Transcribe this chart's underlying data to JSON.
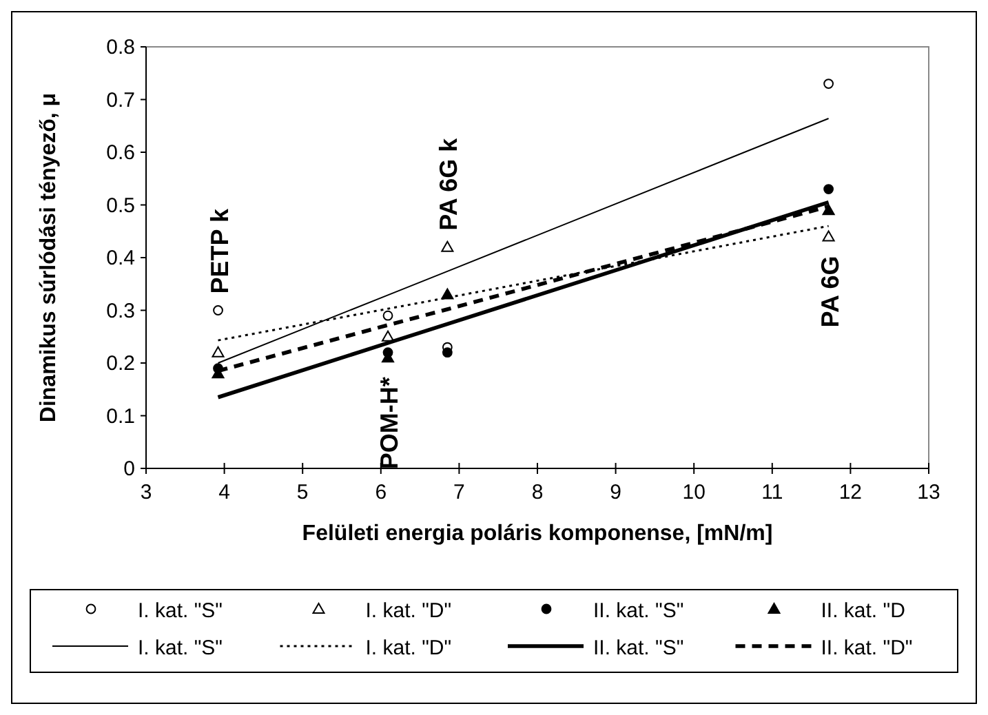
{
  "chart_data": {
    "type": "scatter",
    "xlabel": "Felületi energia poláris komponense, [mN/m]",
    "ylabel": "Dinamikus súrlódási tényező, μ",
    "xlim": [
      3,
      13
    ],
    "ylim": [
      0,
      0.8
    ],
    "xticks": [
      3,
      4,
      5,
      6,
      7,
      8,
      9,
      10,
      11,
      12,
      13
    ],
    "yticks": [
      0,
      0.1,
      0.2,
      0.3,
      0.4,
      0.5,
      0.6,
      0.7,
      0.8
    ],
    "legend": "bottom",
    "grid": false,
    "x": [
      3.92,
      6.09,
      6.85,
      11.72
    ],
    "series": [
      {
        "name": "I. kat. \"S\"",
        "marker": "circle",
        "color": "#ffffff",
        "values": [
          0.3,
          0.29,
          0.23,
          0.73
        ]
      },
      {
        "name": "I. kat. \"D\"",
        "marker": "triangle",
        "color": "#ffffff",
        "values": [
          0.22,
          0.25,
          0.42,
          0.44
        ]
      },
      {
        "name": "II. kat. \"S\"",
        "marker": "circle",
        "color": "#000000",
        "values": [
          0.19,
          0.22,
          0.22,
          0.53
        ]
      },
      {
        "name": "II. kat. \"D",
        "marker": "triangle",
        "color": "#000000",
        "values": [
          0.18,
          0.21,
          0.33,
          0.49
        ]
      },
      {
        "name": "I. kat. \"S\"",
        "type": "line",
        "line_style": "solid",
        "color": "#000000",
        "values": [
          0.2,
          0.329,
          0.374,
          0.664
        ]
      },
      {
        "name": "I. kat. \"D\"",
        "type": "line",
        "line_style": "dotted",
        "color": "#000000",
        "values": [
          0.243,
          0.303,
          0.324,
          0.46
        ]
      },
      {
        "name": "II. kat. \"S\"",
        "type": "line",
        "line_style": "solid",
        "color": "#000000",
        "values": [
          0.135,
          0.238,
          0.274,
          0.505
        ]
      },
      {
        "name": "II. kat. \"D\"",
        "type": "line",
        "line_style": "dashed",
        "color": "#000000",
        "values": [
          0.185,
          0.272,
          0.302,
          0.497
        ]
      }
    ],
    "annotations": [
      {
        "text": "PETP k",
        "x": 3.92,
        "y": 0.3
      },
      {
        "text": "POM-H*",
        "x": 6.09,
        "y": 0.21
      },
      {
        "text": "PA 6G k",
        "x": 6.85,
        "y": 0.42
      },
      {
        "text": "PA 6G",
        "x": 11.72,
        "y": 0.44
      }
    ]
  }
}
